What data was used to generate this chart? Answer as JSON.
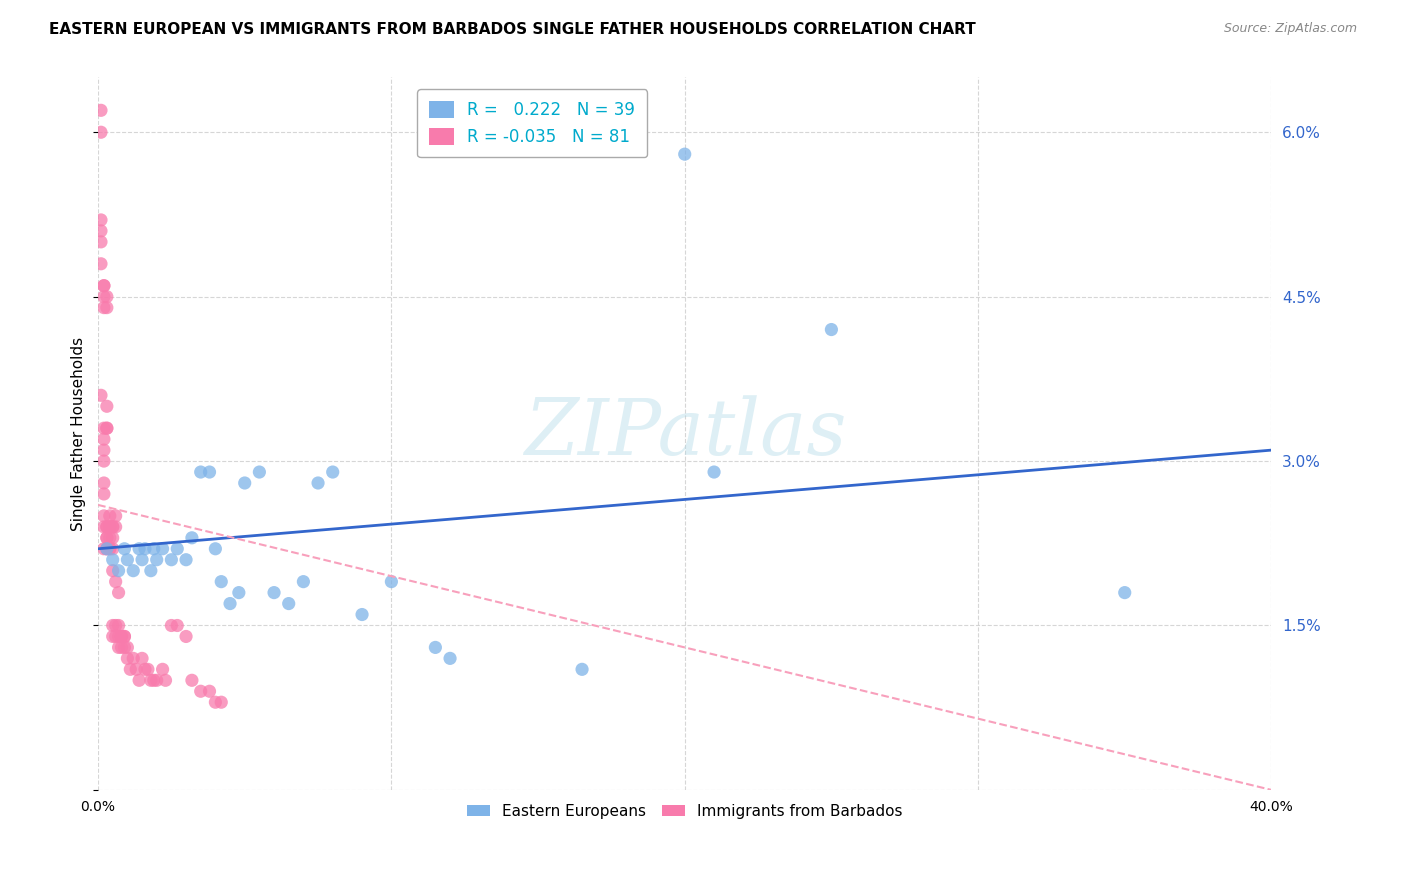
{
  "title": "EASTERN EUROPEAN VS IMMIGRANTS FROM BARBADOS SINGLE FATHER HOUSEHOLDS CORRELATION CHART",
  "source": "Source: ZipAtlas.com",
  "ylabel": "Single Father Households",
  "watermark": "ZIPatlas",
  "x_min": 0.0,
  "x_max": 0.4,
  "y_min": 0.0,
  "y_max": 0.065,
  "x_ticks": [
    0.0,
    0.1,
    0.2,
    0.3,
    0.4
  ],
  "x_tick_labels": [
    "0.0%",
    "",
    "",
    "",
    "40.0%"
  ],
  "y_ticks": [
    0.0,
    0.015,
    0.03,
    0.045,
    0.06
  ],
  "y_tick_labels": [
    "",
    "1.5%",
    "3.0%",
    "4.5%",
    "6.0%"
  ],
  "blue_R": 0.222,
  "blue_N": 39,
  "pink_R": -0.035,
  "pink_N": 81,
  "blue_color": "#7EB3E8",
  "pink_color": "#F87BAC",
  "blue_line_color": "#3366CC",
  "pink_line_color": "#F8A0BC",
  "grid_color": "#CCCCCC",
  "background_color": "#FFFFFF",
  "title_fontsize": 11,
  "tick_label_color_blue": "#3366CC",
  "legend_R_color": "#00AACC",
  "legend_N_color": "#00AACC",
  "blue_line_x0": 0.0,
  "blue_line_y0": 0.022,
  "blue_line_x1": 0.4,
  "blue_line_y1": 0.031,
  "pink_line_x0": 0.0,
  "pink_line_y0": 0.026,
  "pink_line_x1": 0.4,
  "pink_line_y1": 0.0,
  "blue_scatter_x": [
    0.003,
    0.005,
    0.007,
    0.009,
    0.01,
    0.012,
    0.014,
    0.015,
    0.016,
    0.018,
    0.019,
    0.02,
    0.022,
    0.025,
    0.027,
    0.03,
    0.032,
    0.035,
    0.038,
    0.04,
    0.042,
    0.045,
    0.048,
    0.05,
    0.055,
    0.06,
    0.065,
    0.07,
    0.075,
    0.08,
    0.09,
    0.1,
    0.115,
    0.12,
    0.165,
    0.21,
    0.25,
    0.35,
    0.2
  ],
  "blue_scatter_y": [
    0.022,
    0.021,
    0.02,
    0.022,
    0.021,
    0.02,
    0.022,
    0.021,
    0.022,
    0.02,
    0.022,
    0.021,
    0.022,
    0.021,
    0.022,
    0.021,
    0.023,
    0.029,
    0.029,
    0.022,
    0.019,
    0.017,
    0.018,
    0.028,
    0.029,
    0.018,
    0.017,
    0.019,
    0.028,
    0.029,
    0.016,
    0.019,
    0.013,
    0.012,
    0.011,
    0.029,
    0.042,
    0.018,
    0.058
  ],
  "pink_scatter_x": [
    0.001,
    0.001,
    0.001,
    0.001,
    0.001,
    0.002,
    0.002,
    0.002,
    0.002,
    0.002,
    0.002,
    0.002,
    0.002,
    0.002,
    0.002,
    0.002,
    0.003,
    0.003,
    0.003,
    0.003,
    0.003,
    0.003,
    0.003,
    0.003,
    0.003,
    0.004,
    0.004,
    0.004,
    0.004,
    0.004,
    0.005,
    0.005,
    0.005,
    0.005,
    0.005,
    0.005,
    0.006,
    0.006,
    0.006,
    0.006,
    0.007,
    0.007,
    0.007,
    0.008,
    0.008,
    0.009,
    0.009,
    0.01,
    0.01,
    0.011,
    0.012,
    0.013,
    0.014,
    0.015,
    0.016,
    0.017,
    0.018,
    0.019,
    0.02,
    0.022,
    0.023,
    0.025,
    0.027,
    0.03,
    0.032,
    0.035,
    0.038,
    0.04,
    0.042,
    0.001,
    0.001,
    0.002,
    0.002,
    0.003,
    0.003,
    0.004,
    0.005,
    0.006,
    0.007,
    0.008,
    0.009
  ],
  "pink_scatter_y": [
    0.06,
    0.062,
    0.052,
    0.048,
    0.036,
    0.046,
    0.045,
    0.044,
    0.033,
    0.031,
    0.03,
    0.028,
    0.027,
    0.025,
    0.024,
    0.022,
    0.045,
    0.044,
    0.035,
    0.033,
    0.024,
    0.023,
    0.022,
    0.024,
    0.023,
    0.024,
    0.023,
    0.022,
    0.024,
    0.025,
    0.024,
    0.023,
    0.022,
    0.024,
    0.014,
    0.015,
    0.025,
    0.024,
    0.015,
    0.014,
    0.015,
    0.014,
    0.013,
    0.014,
    0.013,
    0.014,
    0.013,
    0.013,
    0.012,
    0.011,
    0.012,
    0.011,
    0.01,
    0.012,
    0.011,
    0.011,
    0.01,
    0.01,
    0.01,
    0.011,
    0.01,
    0.015,
    0.015,
    0.014,
    0.01,
    0.009,
    0.009,
    0.008,
    0.008,
    0.051,
    0.05,
    0.046,
    0.032,
    0.033,
    0.022,
    0.022,
    0.02,
    0.019,
    0.018,
    0.014,
    0.014
  ]
}
